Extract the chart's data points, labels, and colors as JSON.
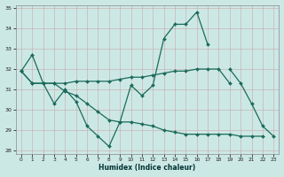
{
  "x": [
    0,
    1,
    2,
    3,
    4,
    5,
    6,
    7,
    8,
    9,
    10,
    11,
    12,
    13,
    14,
    15,
    16,
    17,
    18,
    19,
    20,
    21,
    22,
    23
  ],
  "line1": [
    31.9,
    32.7,
    31.3,
    30.3,
    31.0,
    30.4,
    29.2,
    28.7,
    28.2,
    29.4,
    31.2,
    30.7,
    31.2,
    33.5,
    34.2,
    34.2,
    34.8,
    33.2,
    null,
    32.0,
    31.3,
    30.3,
    29.2,
    28.7
  ],
  "line2": [
    31.9,
    31.3,
    31.3,
    31.3,
    31.3,
    31.4,
    31.4,
    31.4,
    31.4,
    31.5,
    31.6,
    31.6,
    31.7,
    31.8,
    31.9,
    31.9,
    32.0,
    32.0,
    32.0,
    31.3,
    null,
    null,
    null,
    null
  ],
  "line3": [
    31.9,
    31.3,
    31.3,
    31.3,
    30.9,
    30.7,
    30.3,
    29.9,
    29.5,
    29.4,
    29.4,
    29.3,
    29.2,
    29.0,
    28.9,
    28.8,
    28.8,
    28.8,
    28.8,
    28.8,
    28.7,
    28.7,
    28.7,
    null
  ],
  "color": "#1a6b5a",
  "bg_color": "#cce8e5",
  "grid_color": "#aad0cc",
  "xlabel": "Humidex (Indice chaleur)",
  "ylim": [
    28,
    35
  ],
  "xlim": [
    -0.5,
    23.5
  ],
  "yticks": [
    28,
    29,
    30,
    31,
    32,
    33,
    34,
    35
  ],
  "xticks": [
    0,
    1,
    2,
    3,
    4,
    5,
    6,
    7,
    8,
    9,
    10,
    11,
    12,
    13,
    14,
    15,
    16,
    17,
    18,
    19,
    20,
    21,
    22,
    23
  ]
}
